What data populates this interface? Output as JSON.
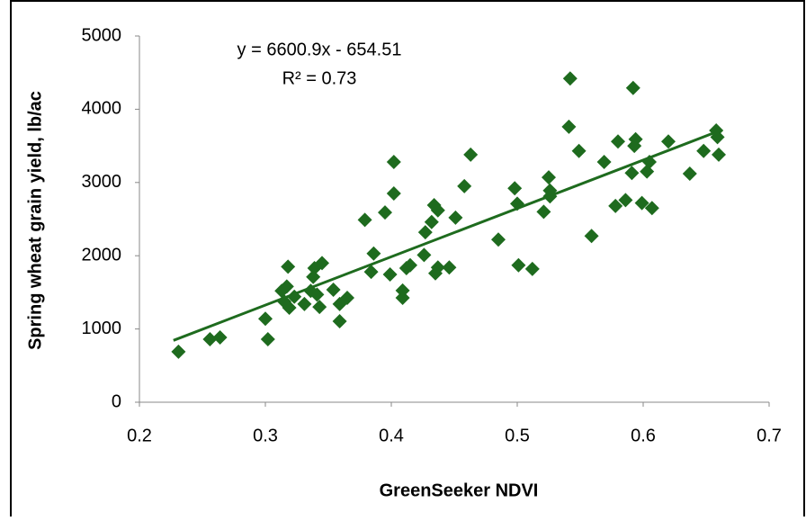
{
  "chart_data": {
    "type": "scatter",
    "x_label": "GreenSeeker NDVI",
    "y_label": "Spring wheat grain yield,  lb/ac",
    "annotations": [
      "y = 6600.9x - 654.51",
      "R² = 0.73"
    ],
    "xlim": [
      0.2,
      0.7
    ],
    "xticks": [
      0.2,
      0.3,
      0.4,
      0.5,
      0.6,
      0.7
    ],
    "ylim": [
      0,
      5000
    ],
    "yticks": [
      0,
      1000,
      2000,
      3000,
      4000,
      5000
    ],
    "grid": false,
    "series": [
      {
        "color": "#1e6b1e",
        "x": [
          0.231,
          0.256,
          0.264,
          0.3,
          0.302,
          0.313,
          0.317,
          0.318,
          0.315,
          0.319,
          0.323,
          0.331,
          0.336,
          0.339,
          0.338,
          0.341,
          0.343,
          0.345,
          0.354,
          0.359,
          0.359,
          0.365,
          0.379,
          0.384,
          0.386,
          0.395,
          0.399,
          0.402,
          0.402,
          0.409,
          0.409,
          0.412,
          0.415,
          0.426,
          0.427,
          0.432,
          0.434,
          0.435,
          0.437,
          0.437,
          0.446,
          0.451,
          0.458,
          0.463,
          0.485,
          0.498,
          0.5,
          0.501,
          0.512,
          0.521,
          0.525,
          0.526,
          0.526,
          0.541,
          0.542,
          0.549,
          0.559,
          0.569,
          0.578,
          0.58,
          0.586,
          0.591,
          0.592,
          0.593,
          0.594,
          0.599,
          0.603,
          0.605,
          0.607,
          0.62,
          0.637,
          0.648,
          0.658,
          0.659,
          0.66
        ],
        "values": [
          690,
          860,
          885,
          1140,
          860,
          1520,
          1580,
          1850,
          1375,
          1290,
          1440,
          1340,
          1520,
          1830,
          1710,
          1470,
          1300,
          1900,
          1535,
          1340,
          1105,
          1425,
          2490,
          1780,
          2030,
          2590,
          1745,
          3280,
          2850,
          1525,
          1425,
          1830,
          1870,
          2010,
          2320,
          2460,
          2690,
          1760,
          1840,
          2620,
          1840,
          2520,
          2950,
          3380,
          2220,
          2920,
          2710,
          1870,
          1820,
          2600,
          3070,
          2890,
          2810,
          3760,
          4420,
          3430,
          2270,
          3280,
          2680,
          3560,
          2760,
          3130,
          4290,
          3500,
          3590,
          2720,
          3150,
          3280,
          2650,
          3560,
          3120,
          3430,
          3710,
          3620,
          3380
        ]
      }
    ],
    "trendline": {
      "color": "#1e6b1e",
      "x": [
        0.227,
        0.66
      ],
      "y": [
        844,
        3702
      ]
    }
  }
}
